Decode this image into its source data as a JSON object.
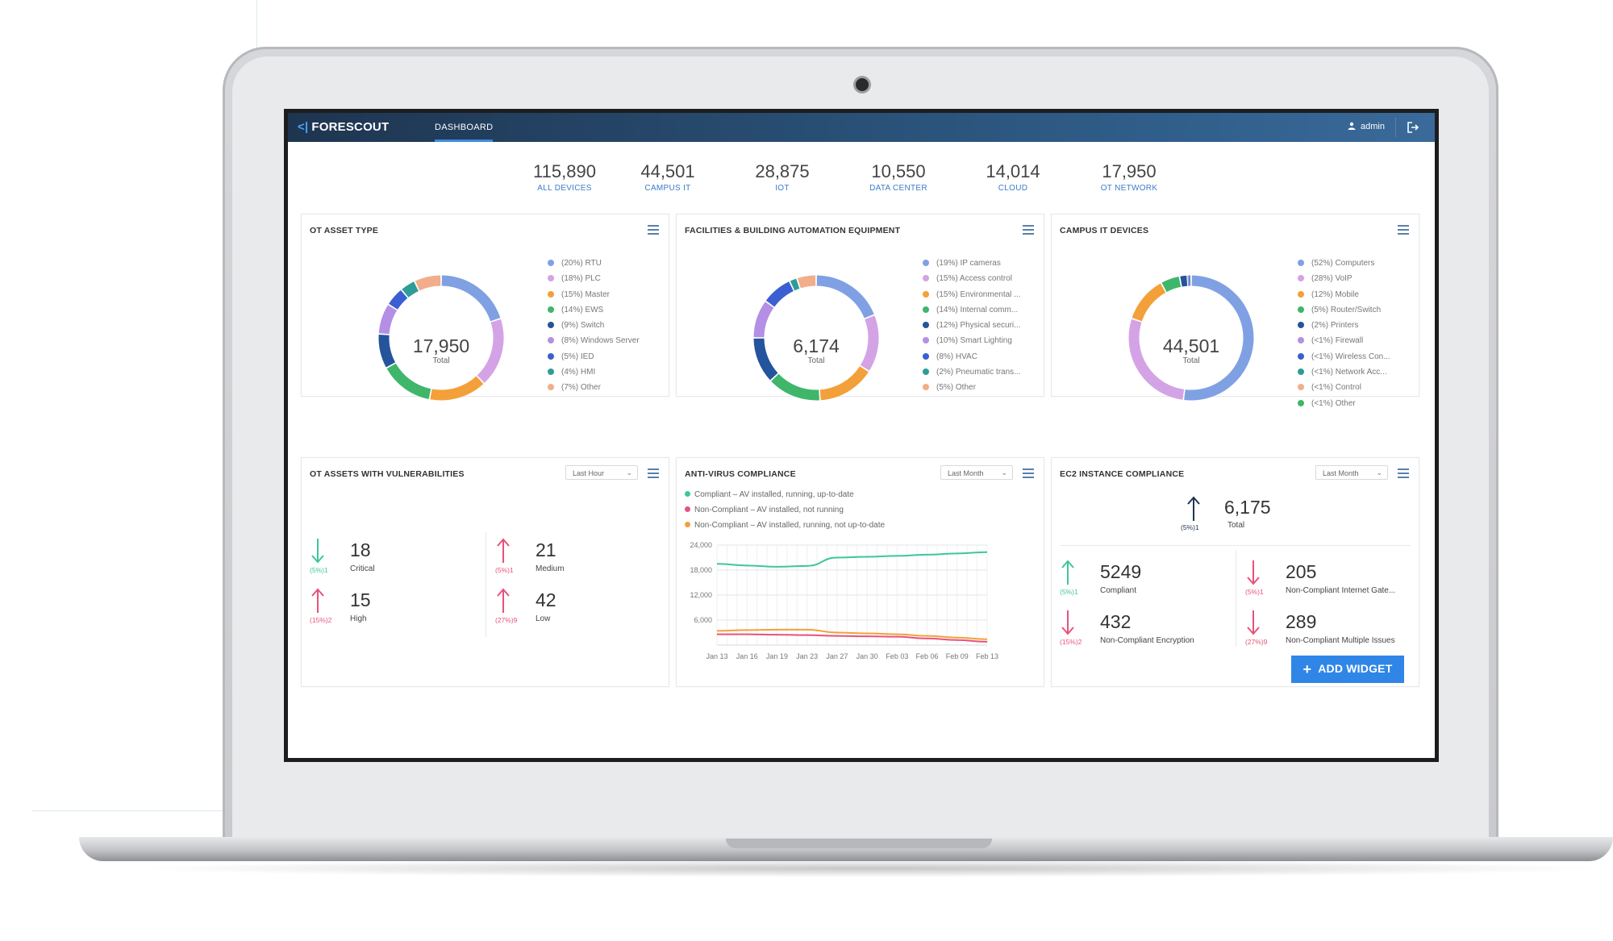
{
  "header": {
    "logo_mark": "<|",
    "logo_text": "FORESCOUT",
    "nav_tab": "DASHBOARD",
    "user": "admin"
  },
  "stats": [
    {
      "value": "115,890",
      "label": "ALL DEVICES"
    },
    {
      "value": "44,501",
      "label": "CAMPUS IT"
    },
    {
      "value": "28,875",
      "label": "IOT"
    },
    {
      "value": "10,550",
      "label": "DATA CENTER"
    },
    {
      "value": "14,014",
      "label": "CLOUD"
    },
    {
      "value": "17,950",
      "label": "OT NETWORK"
    }
  ],
  "cards": {
    "ot_asset_type": {
      "title": "OT ASSET TYPE",
      "total": "17,950",
      "total_label": "Total",
      "legend": [
        {
          "label": "(20%) RTU",
          "color": "#7fa1e3",
          "pct": 20
        },
        {
          "label": "(18%) PLC",
          "color": "#d4a3e6",
          "pct": 18
        },
        {
          "label": "(15%) Master",
          "color": "#f3a03a",
          "pct": 15
        },
        {
          "label": "(14%) EWS",
          "color": "#3fb66a",
          "pct": 14
        },
        {
          "label": "(9%) Switch",
          "color": "#24549c",
          "pct": 9
        },
        {
          "label": "(8%) Windows Server",
          "color": "#b48fe5",
          "pct": 8
        },
        {
          "label": "(5%) IED",
          "color": "#3b5fd1",
          "pct": 5
        },
        {
          "label": "(4%) HMI",
          "color": "#2e9c97",
          "pct": 4
        },
        {
          "label": "(7%) Other",
          "color": "#f2ad8a",
          "pct": 7
        }
      ]
    },
    "facilities": {
      "title": "FACILITIES & BUILDING AUTOMATION EQUIPMENT",
      "total": "6,174",
      "total_label": "Total",
      "legend": [
        {
          "label": "(19%) IP cameras",
          "color": "#7fa1e3",
          "pct": 19
        },
        {
          "label": "(15%) Access control",
          "color": "#d4a3e6",
          "pct": 15
        },
        {
          "label": "(15%) Environmental ...",
          "color": "#f3a03a",
          "pct": 15
        },
        {
          "label": "(14%) Internal comm...",
          "color": "#3fb66a",
          "pct": 14
        },
        {
          "label": "(12%) Physical securi...",
          "color": "#24549c",
          "pct": 12
        },
        {
          "label": "(10%) Smart Lighting",
          "color": "#b48fe5",
          "pct": 10
        },
        {
          "label": "(8%) HVAC",
          "color": "#3b5fd1",
          "pct": 8
        },
        {
          "label": "(2%) Pneumatic trans...",
          "color": "#2e9c97",
          "pct": 2
        },
        {
          "label": "(5%) Other",
          "color": "#f2ad8a",
          "pct": 5
        }
      ]
    },
    "campus_it": {
      "title": "CAMPUS IT DEVICES",
      "total": "44,501",
      "total_label": "Total",
      "legend": [
        {
          "label": "(52%) Computers",
          "color": "#7fa1e3",
          "pct": 52
        },
        {
          "label": "(28%) VoIP",
          "color": "#d4a3e6",
          "pct": 28
        },
        {
          "label": "(12%) Mobile",
          "color": "#f3a03a",
          "pct": 12
        },
        {
          "label": "(5%) Router/Switch",
          "color": "#3fb66a",
          "pct": 5
        },
        {
          "label": "(2%) Printers",
          "color": "#24549c",
          "pct": 2
        },
        {
          "label": "(<1%) Firewall",
          "color": "#b48fe5",
          "pct": 0.3
        },
        {
          "label": "(<1%) Wireless Con...",
          "color": "#3b5fd1",
          "pct": 0.3
        },
        {
          "label": "(<1%) Network Acc...",
          "color": "#2e9c97",
          "pct": 0.2
        },
        {
          "label": "(<1%) Control",
          "color": "#f2ad8a",
          "pct": 0.1
        },
        {
          "label": "(<1%) Other",
          "color": "#3fb66a",
          "pct": 0.1
        }
      ]
    },
    "ot_vuln": {
      "title": "OT ASSETS WITH VULNERABILITIES",
      "dropdown": "Last Hour",
      "metrics": [
        {
          "value": "18",
          "label": "Critical",
          "delta": "(5%)1",
          "dir": "down"
        },
        {
          "value": "21",
          "label": "Medium",
          "delta": "(5%)1",
          "dir": "up"
        },
        {
          "value": "15",
          "label": "High",
          "delta": "(15%)2",
          "dir": "up"
        },
        {
          "value": "42",
          "label": "Low",
          "delta": "(27%)9",
          "dir": "up"
        }
      ]
    },
    "antivirus": {
      "title": "ANTI-VIRUS COMPLIANCE",
      "dropdown": "Last Month",
      "legend": [
        {
          "label": "Compliant – AV installed, running, up-to-date",
          "color": "#3cc79c"
        },
        {
          "label": "Non-Compliant – AV installed, not running",
          "color": "#e8527a"
        },
        {
          "label": "Non-Compliant – AV installed, running, not up-to-date",
          "color": "#f3a03a"
        }
      ]
    },
    "ec2": {
      "title": "EC2 INSTANCE COMPLIANCE",
      "dropdown": "Last Month",
      "total": "6,175",
      "total_label": "Total",
      "total_delta": "(5%)1",
      "metrics": [
        {
          "value": "5249",
          "label": "Compliant",
          "delta": "(5%)1",
          "dir": "up",
          "tone": "green"
        },
        {
          "value": "205",
          "label": "Non-Compliant Internet Gate...",
          "delta": "(5%)1",
          "dir": "down",
          "tone": "red"
        },
        {
          "value": "432",
          "label": "Non-Compliant Encryption",
          "delta": "(15%)2",
          "dir": "down",
          "tone": "red"
        },
        {
          "value": "289",
          "label": "Non-Compliant Multiple Issues",
          "delta": "(27%)9",
          "dir": "down",
          "tone": "red"
        }
      ]
    }
  },
  "chart_data": {
    "type": "line",
    "x": [
      "Jan 13",
      "Jan 16",
      "Jan 19",
      "Jan 23",
      "Jan 27",
      "Jan 30",
      "Feb 03",
      "Feb 06",
      "Feb 09",
      "Feb 13"
    ],
    "yticks": [
      "24,000",
      "18,000",
      "12,000",
      "6,000"
    ],
    "ylim": [
      0,
      24000
    ],
    "grid": true,
    "series": [
      {
        "name": "Compliant – AV installed, running, up-to-date",
        "color": "#3cc79c",
        "values": [
          19500,
          19100,
          18800,
          19000,
          21000,
          21200,
          21400,
          21700,
          22000,
          22300
        ]
      },
      {
        "name": "Non-Compliant – AV installed, running, not up-to-date",
        "color": "#f3a03a",
        "values": [
          3400,
          3600,
          3700,
          3700,
          3000,
          2800,
          2600,
          2200,
          1800,
          1400
        ]
      },
      {
        "name": "Non-Compliant – AV installed, not running",
        "color": "#e8527a",
        "values": [
          2600,
          2600,
          2500,
          2400,
          2200,
          2100,
          2000,
          1600,
          1200,
          800
        ]
      }
    ]
  },
  "add_widget_label": "ADD WIDGET"
}
